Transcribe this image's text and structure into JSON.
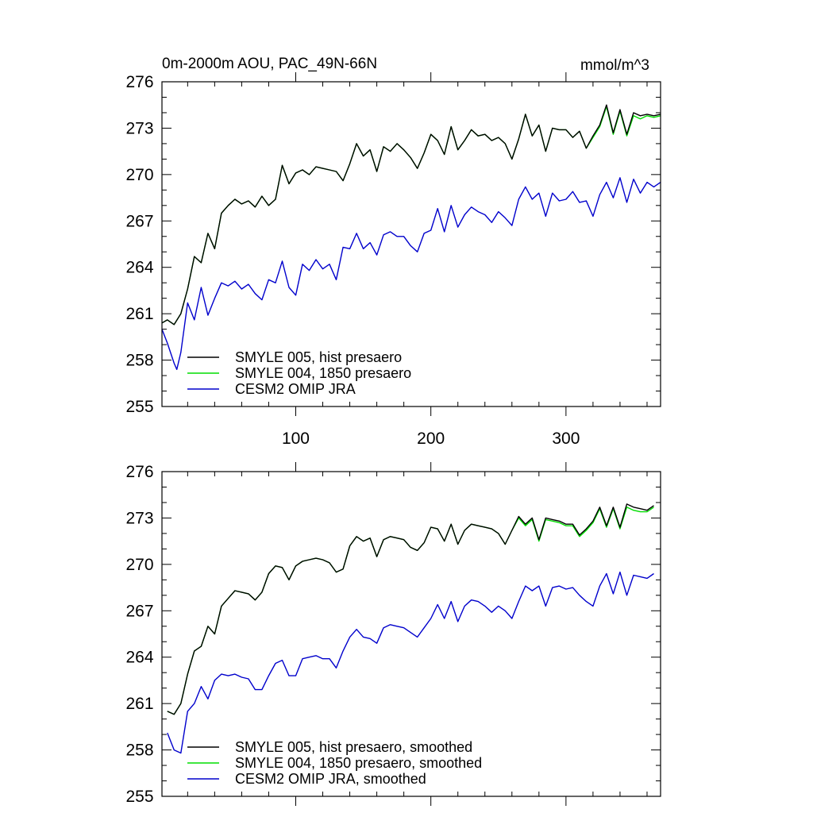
{
  "chart_data": [
    {
      "type": "line",
      "title": "0m-2000m AOU, PAC_49N-66N",
      "units": "mmol/m^3",
      "xlabel": "",
      "ylabel": "",
      "xlim": [
        1,
        370
      ],
      "ylim": [
        255,
        276
      ],
      "xticks": [
        100,
        200,
        300
      ],
      "xtick_labels": [
        "100",
        "200",
        "300"
      ],
      "yticks": [
        255,
        258,
        261,
        264,
        267,
        270,
        273,
        276
      ],
      "ytick_labels": [
        "255",
        "258",
        "261",
        "264",
        "267",
        "270",
        "273",
        "276"
      ],
      "legend_position": "bottom-left",
      "series": [
        {
          "name": "SMYLE 005, hist presaero",
          "color": "#000000",
          "x": [
            1,
            5,
            10,
            15,
            20,
            25,
            30,
            35,
            40,
            45,
            50,
            55,
            60,
            65,
            70,
            75,
            80,
            85,
            90,
            95,
            100,
            105,
            110,
            115,
            120,
            125,
            130,
            135,
            140,
            145,
            150,
            155,
            160,
            165,
            170,
            175,
            180,
            185,
            190,
            195,
            200,
            205,
            210,
            215,
            220,
            225,
            230,
            235,
            240,
            245,
            250,
            255,
            260,
            265,
            270,
            275,
            280,
            285,
            290,
            295,
            300,
            305,
            310,
            315,
            320,
            325,
            330,
            335,
            340,
            345,
            350,
            355,
            360,
            365,
            370
          ],
          "values": [
            260.4,
            260.6,
            260.3,
            261.0,
            262.6,
            264.7,
            264.3,
            266.2,
            265.2,
            267.5,
            268.0,
            268.4,
            268.1,
            268.3,
            267.9,
            268.6,
            268.0,
            268.4,
            270.6,
            269.4,
            270.1,
            270.3,
            270.0,
            270.5,
            270.4,
            270.3,
            270.2,
            269.6,
            270.7,
            272.0,
            271.2,
            271.6,
            270.2,
            271.8,
            271.5,
            272.0,
            271.6,
            271.1,
            270.4,
            271.4,
            272.6,
            272.2,
            271.3,
            273.1,
            271.6,
            272.2,
            272.9,
            272.5,
            272.6,
            272.2,
            272.4,
            272.0,
            271.0,
            272.3,
            273.9,
            272.5,
            273.2,
            271.5,
            273.0,
            272.9,
            272.9,
            272.4,
            272.8,
            271.7,
            272.5,
            273.2,
            274.5,
            272.7,
            274.2,
            272.6,
            274.0,
            273.8,
            273.9,
            273.8,
            273.9
          ]
        },
        {
          "name": "SMYLE 004, 1850 presaero",
          "color": "#00dd00",
          "x": [
            1,
            5,
            10,
            15,
            20,
            25,
            30,
            35,
            40,
            45,
            50,
            55,
            60,
            65,
            70,
            75,
            80,
            85,
            90,
            95,
            100,
            105,
            110,
            115,
            120,
            125,
            130,
            135,
            140,
            145,
            150,
            155,
            160,
            165,
            170,
            175,
            180,
            185,
            190,
            195,
            200,
            205,
            210,
            215,
            220,
            225,
            230,
            235,
            240,
            245,
            250,
            255,
            260,
            265,
            270,
            275,
            280,
            285,
            290,
            295,
            300,
            305,
            310,
            315,
            320,
            325,
            330,
            335,
            340,
            345,
            350,
            355,
            360,
            365,
            370
          ],
          "values": [
            260.4,
            260.6,
            260.3,
            261.0,
            262.6,
            264.7,
            264.3,
            266.2,
            265.2,
            267.5,
            268.0,
            268.4,
            268.1,
            268.3,
            267.9,
            268.6,
            268.0,
            268.4,
            270.6,
            269.4,
            270.1,
            270.3,
            270.0,
            270.5,
            270.4,
            270.3,
            270.2,
            269.6,
            270.7,
            272.0,
            271.2,
            271.6,
            270.2,
            271.8,
            271.5,
            272.0,
            271.6,
            271.1,
            270.4,
            271.4,
            272.6,
            272.2,
            271.3,
            273.1,
            271.6,
            272.2,
            272.9,
            272.5,
            272.6,
            272.2,
            272.4,
            272.0,
            271.0,
            272.3,
            273.9,
            272.5,
            273.2,
            271.5,
            273.0,
            272.9,
            272.9,
            272.4,
            272.8,
            271.7,
            272.4,
            273.1,
            274.4,
            272.6,
            274.1,
            272.5,
            273.8,
            273.6,
            273.8,
            273.7,
            273.8
          ]
        },
        {
          "name": "CESM2 OMIP JRA",
          "color": "#0000cc",
          "x": [
            1,
            5,
            10,
            12,
            15,
            20,
            25,
            30,
            35,
            40,
            45,
            50,
            55,
            60,
            65,
            70,
            75,
            80,
            85,
            90,
            95,
            100,
            105,
            110,
            115,
            120,
            125,
            130,
            135,
            140,
            145,
            150,
            155,
            160,
            165,
            170,
            175,
            180,
            185,
            190,
            195,
            200,
            205,
            210,
            215,
            220,
            225,
            230,
            235,
            240,
            245,
            250,
            255,
            260,
            265,
            270,
            275,
            280,
            285,
            290,
            295,
            300,
            305,
            310,
            315,
            320,
            325,
            330,
            335,
            340,
            345,
            350,
            355,
            360,
            365,
            370
          ],
          "values": [
            260.0,
            259.1,
            257.8,
            257.4,
            258.5,
            261.7,
            260.6,
            262.7,
            260.9,
            262.0,
            263.0,
            262.8,
            263.1,
            262.6,
            262.9,
            262.3,
            261.9,
            263.2,
            263.0,
            264.4,
            262.7,
            262.2,
            264.2,
            263.8,
            264.5,
            263.9,
            264.2,
            263.2,
            265.3,
            265.2,
            266.2,
            265.2,
            265.6,
            264.8,
            266.1,
            266.3,
            266.0,
            266.0,
            265.4,
            265.0,
            266.2,
            266.4,
            267.8,
            266.3,
            268.0,
            266.6,
            267.4,
            267.9,
            267.6,
            267.4,
            266.9,
            267.6,
            267.2,
            266.7,
            268.4,
            269.2,
            268.4,
            268.8,
            267.3,
            268.8,
            268.3,
            268.4,
            268.9,
            268.2,
            268.3,
            267.3,
            268.7,
            269.5,
            268.5,
            269.8,
            268.2,
            269.7,
            268.8,
            269.5,
            269.2,
            269.5
          ]
        }
      ]
    },
    {
      "type": "line",
      "title": "",
      "xlabel": "",
      "ylabel": "",
      "xlim": [
        1,
        370
      ],
      "ylim": [
        255,
        276
      ],
      "xticks": [
        100,
        200,
        300
      ],
      "yticks": [
        255,
        258,
        261,
        264,
        267,
        270,
        273,
        276
      ],
      "ytick_labels": [
        "255",
        "258",
        "261",
        "264",
        "267",
        "270",
        "273",
        "276"
      ],
      "legend_position": "bottom-left",
      "series": [
        {
          "name": "SMYLE 005, hist presaero, smoothed",
          "color": "#000000",
          "x": [
            5,
            10,
            15,
            20,
            25,
            30,
            35,
            40,
            45,
            50,
            55,
            60,
            65,
            70,
            75,
            80,
            85,
            90,
            95,
            100,
            105,
            110,
            115,
            120,
            125,
            130,
            135,
            140,
            145,
            150,
            155,
            160,
            165,
            170,
            175,
            180,
            185,
            190,
            195,
            200,
            205,
            210,
            215,
            220,
            225,
            230,
            235,
            240,
            245,
            250,
            255,
            260,
            265,
            270,
            275,
            280,
            285,
            290,
            295,
            300,
            305,
            310,
            315,
            320,
            325,
            330,
            335,
            340,
            345,
            350,
            355,
            360,
            365
          ],
          "values": [
            260.5,
            260.3,
            261.0,
            262.9,
            264.4,
            264.7,
            266.0,
            265.5,
            267.3,
            267.8,
            268.3,
            268.2,
            268.1,
            267.7,
            268.2,
            269.4,
            269.9,
            269.8,
            269.0,
            269.9,
            270.2,
            270.3,
            270.4,
            270.3,
            270.1,
            269.5,
            269.7,
            271.2,
            271.8,
            271.5,
            271.7,
            270.5,
            271.6,
            271.8,
            271.7,
            271.6,
            271.1,
            270.9,
            271.4,
            272.4,
            272.3,
            271.5,
            272.6,
            271.3,
            272.2,
            272.6,
            272.5,
            272.4,
            272.3,
            272.0,
            271.3,
            272.2,
            273.1,
            272.6,
            273.0,
            271.6,
            273.0,
            272.9,
            272.8,
            272.6,
            272.6,
            271.9,
            272.3,
            272.8,
            273.7,
            272.5,
            273.7,
            272.4,
            273.9,
            273.7,
            273.6,
            273.5,
            273.8
          ]
        },
        {
          "name": "SMYLE 004, 1850 presaero, smoothed",
          "color": "#00dd00",
          "x": [
            5,
            10,
            15,
            20,
            25,
            30,
            35,
            40,
            45,
            50,
            55,
            60,
            65,
            70,
            75,
            80,
            85,
            90,
            95,
            100,
            105,
            110,
            115,
            120,
            125,
            130,
            135,
            140,
            145,
            150,
            155,
            160,
            165,
            170,
            175,
            180,
            185,
            190,
            195,
            200,
            205,
            210,
            215,
            220,
            225,
            230,
            235,
            240,
            245,
            250,
            255,
            260,
            265,
            270,
            275,
            280,
            285,
            290,
            295,
            300,
            305,
            310,
            315,
            320,
            325,
            330,
            335,
            340,
            345,
            350,
            355,
            360,
            365
          ],
          "values": [
            260.5,
            260.3,
            261.0,
            262.9,
            264.4,
            264.7,
            266.0,
            265.5,
            267.3,
            267.8,
            268.3,
            268.2,
            268.1,
            267.7,
            268.2,
            269.4,
            269.9,
            269.8,
            269.0,
            269.9,
            270.2,
            270.3,
            270.4,
            270.3,
            270.1,
            269.5,
            269.7,
            271.2,
            271.8,
            271.5,
            271.7,
            270.5,
            271.6,
            271.8,
            271.7,
            271.6,
            271.1,
            270.9,
            271.4,
            272.4,
            272.3,
            271.5,
            272.6,
            271.3,
            272.2,
            272.6,
            272.5,
            272.4,
            272.3,
            272.0,
            271.3,
            272.2,
            273.0,
            272.5,
            272.9,
            271.5,
            272.9,
            272.8,
            272.7,
            272.5,
            272.5,
            271.8,
            272.2,
            272.7,
            273.6,
            272.4,
            273.6,
            272.3,
            273.7,
            273.5,
            273.4,
            273.4,
            273.7
          ]
        },
        {
          "name": "CESM2 OMIP JRA, smoothed",
          "color": "#0000cc",
          "x": [
            5,
            10,
            15,
            20,
            25,
            30,
            35,
            40,
            45,
            50,
            55,
            60,
            65,
            70,
            75,
            80,
            85,
            90,
            95,
            100,
            105,
            110,
            115,
            120,
            125,
            130,
            135,
            140,
            145,
            150,
            155,
            160,
            165,
            170,
            175,
            180,
            185,
            190,
            195,
            200,
            205,
            210,
            215,
            220,
            225,
            230,
            235,
            240,
            245,
            250,
            255,
            260,
            265,
            270,
            275,
            280,
            285,
            290,
            295,
            300,
            305,
            310,
            315,
            320,
            325,
            330,
            335,
            340,
            345,
            350,
            355,
            360,
            365
          ],
          "values": [
            259.1,
            258.0,
            257.8,
            260.5,
            261.0,
            262.1,
            261.3,
            262.5,
            262.9,
            262.8,
            262.9,
            262.7,
            262.6,
            261.9,
            261.9,
            262.8,
            263.6,
            263.8,
            262.8,
            262.8,
            263.9,
            264.0,
            264.1,
            263.9,
            263.9,
            263.3,
            264.4,
            265.3,
            265.8,
            265.3,
            265.2,
            264.9,
            265.9,
            266.1,
            266.0,
            265.9,
            265.6,
            265.3,
            265.9,
            266.5,
            267.4,
            266.5,
            267.6,
            266.3,
            267.3,
            267.7,
            267.6,
            267.3,
            266.9,
            267.3,
            267.0,
            266.5,
            267.6,
            268.6,
            268.3,
            268.6,
            267.3,
            268.5,
            268.6,
            268.4,
            268.5,
            268.0,
            267.6,
            267.3,
            268.6,
            269.4,
            268.1,
            269.5,
            268.0,
            269.3,
            269.2,
            269.1,
            269.4
          ]
        }
      ]
    }
  ]
}
